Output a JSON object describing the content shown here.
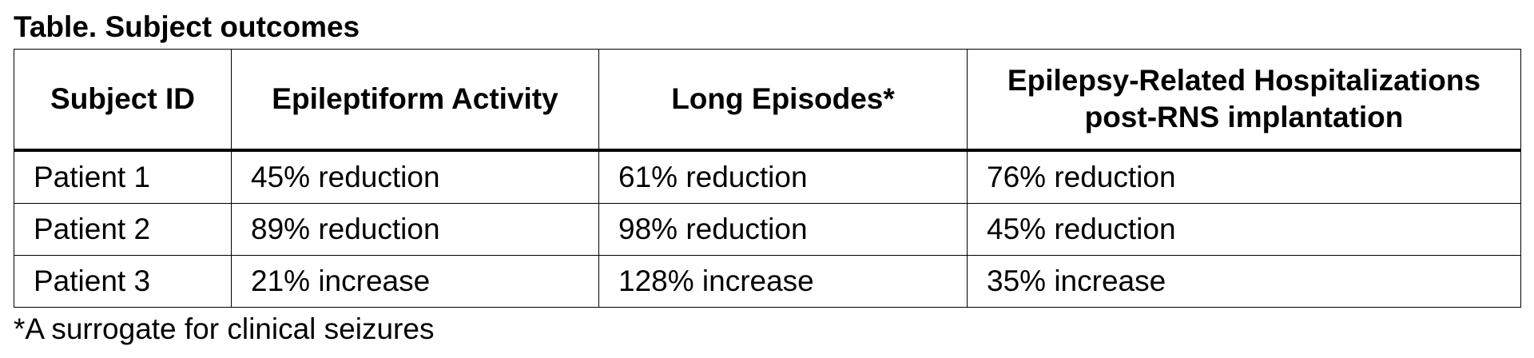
{
  "title": "Table. Subject outcomes",
  "table": {
    "header": [
      "Subject ID",
      "Epileptiform Activity",
      "Long Episodes*",
      "Epilepsy-Related Hospitalizations post-RNS implantation"
    ],
    "rows": [
      [
        "Patient 1",
        "45% reduction",
        "61% reduction",
        "76% reduction"
      ],
      [
        "Patient 2",
        "89% reduction",
        "98% reduction",
        "45% reduction"
      ],
      [
        "Patient 3",
        "21% increase",
        "128% increase",
        "35% increase"
      ]
    ]
  },
  "footnote": "*A surrogate for clinical seizures"
}
